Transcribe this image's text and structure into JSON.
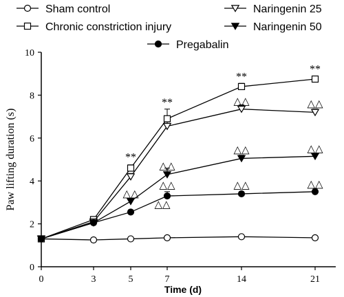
{
  "chart_data": {
    "type": "line",
    "xlabel": "Time (d)",
    "ylabel": "Paw lifting duration (s)",
    "categories": [
      "0",
      "3",
      "5",
      "7",
      "14",
      "21"
    ],
    "ylim": [
      0,
      10
    ],
    "yticks": [
      "0",
      "2",
      "4",
      "6",
      "8",
      "10"
    ],
    "legend_placement": "top",
    "series": [
      {
        "name": "Sham control",
        "marker": "open-circle",
        "values": [
          1.3,
          1.25,
          1.3,
          1.35,
          1.4,
          1.35
        ],
        "err": [
          0,
          0.05,
          0.05,
          0.05,
          0.05,
          0.05
        ]
      },
      {
        "name": "Chronic constriction injury",
        "marker": "open-square",
        "values": [
          1.3,
          2.2,
          4.6,
          6.9,
          8.4,
          8.75
        ],
        "err": [
          0,
          0.1,
          0.15,
          0.45,
          0.15,
          0.1
        ]
      },
      {
        "name": "Naringenin 25",
        "marker": "open-triangle-down",
        "values": [
          1.3,
          2.1,
          4.2,
          6.55,
          7.35,
          7.2
        ],
        "err": [
          0,
          0.1,
          0.15,
          0.2,
          0.2,
          0.15
        ]
      },
      {
        "name": "Naringenin 50",
        "marker": "filled-triangle-down",
        "values": [
          1.3,
          2.05,
          3.05,
          4.3,
          5.05,
          5.15
        ],
        "err": [
          0,
          0.1,
          0.15,
          0.3,
          0.15,
          0.1
        ]
      },
      {
        "name": "Pregabalin",
        "marker": "filled-circle",
        "values": [
          1.3,
          2.05,
          2.55,
          3.3,
          3.4,
          3.5
        ],
        "err": [
          0,
          0.1,
          0.1,
          0.2,
          0.1,
          0.15
        ]
      }
    ],
    "annotations": [
      {
        "text": "**",
        "x": "5",
        "y": 5.15
      },
      {
        "text": "**",
        "x": "7",
        "y": 7.7
      },
      {
        "text": "**",
        "x": "14",
        "y": 8.9
      },
      {
        "text": "**",
        "x": "21",
        "y": 9.25
      },
      {
        "text": "△△",
        "x": "5",
        "y": 3.45
      },
      {
        "text": "△△",
        "x": "5+",
        "y": 2.95
      },
      {
        "text": "△△",
        "x": "7",
        "y": 4.75
      },
      {
        "text": "△△",
        "x": "7",
        "y": 3.85
      },
      {
        "text": "△△",
        "x": "14",
        "y": 7.75
      },
      {
        "text": "△△",
        "x": "14",
        "y": 5.5
      },
      {
        "text": "△△",
        "x": "14",
        "y": 3.85
      },
      {
        "text": "△△",
        "x": "21",
        "y": 7.65
      },
      {
        "text": "△△",
        "x": "21",
        "y": 5.55
      },
      {
        "text": "△△",
        "x": "21",
        "y": 3.9
      }
    ]
  }
}
